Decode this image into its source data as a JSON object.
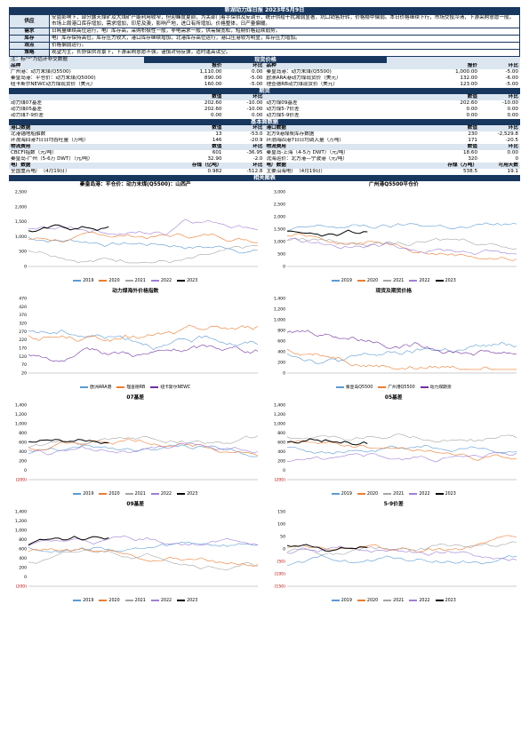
{
  "title": "新湖动力煤日报 2023年5月9日",
  "rows": {
    "supply": {
      "label": "供应",
      "text": "安监影响下，部分露天煤矿及大煤矿产能利用收窄，但迎峰度夏前，为关部门着手保供及反调节，统计供给干扰减弱显著，坑口销售好转，价格稳中偏弱。本日价格继续下行，市场交投冷清，下游采购意愿一般。市场上周港口库存增加，需求增加，印尼及澳，影响产地，进口有所增加。价格整体，日产量偏暖。"
    },
    "demand": {
      "label": "需求",
      "text": "日耗量继续高位运行，电厂库存高，采购积极性一般，非电需求一般，供需偏宽松，短期价格延续弱势。"
    },
    "futures": {
      "label": "库存",
      "text": "电厂库存保持高位，库存压力较大，港口库存继续增加，北港库存高位运行，港口压港较为明显，库存压力增加。"
    },
    "view": {
      "label": "观点",
      "text": "价格偏弱运行。"
    },
    "strategy": {
      "label": "策略",
      "text": "观望为主，长协保供背景下，下游采购意愿不强，谨慎对待反弹，适时逢高试空。"
    }
  },
  "note": "注：标\"*\"为估计非交数据",
  "sections": {
    "spot": "现货价格",
    "futures_prices": "期货",
    "fundamentals": "基本面数据",
    "charts": "相关图表"
  },
  "spot_header": [
    "品种",
    "报价",
    "环比",
    "品种",
    "报价",
    "环比"
  ],
  "spot_rows": [
    [
      "广州港：动力末煤(Q5500)",
      "1,110.00",
      "0.00",
      "秦皇岛港：动力末煤(Q5500)",
      "1,000.00",
      "-5.00"
    ],
    [
      "秦皇岛港：平仓价：动力末煤(Q5000)",
      "890.00",
      "-5.00",
      "欧洲ARA港动力煤现货价（美元）",
      "132.00",
      "-6.00"
    ],
    [
      "纽卡斯尔NEWC动力煤现货价（美元）",
      "160.00",
      "-5.00",
      "理查德RB动力煤现货价（美元）",
      "123.00",
      "-5.00"
    ]
  ],
  "futures_header": [
    "",
    "数值",
    "环比",
    "",
    "数值",
    "环比"
  ],
  "futures_rows": [
    [
      "动力煤07基差",
      "202.60",
      "-10.00",
      "动力煤09基差",
      "202.60",
      "-10.00"
    ],
    [
      "动力煤05基差",
      "202.60",
      "-10.00",
      "动力煤5-7价差",
      "0.00",
      "0.00"
    ],
    [
      "动力煤7-9价差",
      "0.00",
      "0.00",
      "动力煤5-9价差",
      "0.00",
      "0.00"
    ]
  ],
  "fund_header1": [
    "港口数据",
    "数值",
    "环比",
    "港口数据",
    "数值",
    "环比"
  ],
  "fund_rows1": [
    [
      "北港锚地船舶数",
      "13",
      "-53.0",
      "北方9港煤炭库存数据",
      "230",
      "-2,529.8"
    ],
    [
      "环渤海四港7日日均吞吐量（万吨）",
      "146",
      "-20.9",
      "环渤海四港7日日均调入量（万吨）",
      "171",
      "-20.5"
    ]
  ],
  "fund_header2": [
    "物流费用",
    "数值",
    "环比",
    "物流费用",
    "数值",
    "环比"
  ],
  "fund_rows2": [
    [
      "CBCFI指数（元/吨）",
      "601",
      "-36.95",
      "秦皇岛-上海（4-5万 DWT）（元/吨）",
      "18.60",
      "0.00"
    ],
    [
      "秦皇岛-广州（5-6万 DWT）（元/吨）",
      "32.90",
      "-2.0",
      "沈海运价：北方港—宁波港（元/吨）",
      "320",
      "0"
    ]
  ],
  "fund_header3": [
    "电厂数据",
    "存煤（亿吨）",
    "环比",
    "电厂数据",
    "存煤（万吨）",
    "可用天数"
  ],
  "fund_rows3": [
    [
      "全国重点电厂（4月19日）",
      "0.982",
      "-512.8",
      "主要沿海电厂（4月19日）",
      "538.5",
      "19.1"
    ]
  ],
  "charts": [
    {
      "title": "秦皇岛港：平仓价：动力末煤(Q5500)：山西产",
      "yticks": [
        "2,500",
        "2,000",
        "1,500",
        "1,000",
        "500",
        "0"
      ],
      "legend": [
        "2019",
        "2020",
        "2021",
        "2022",
        "2023"
      ]
    },
    {
      "title": "广州港Q5500平仓价",
      "yticks": [
        "3,000",
        "2,500",
        "2,000",
        "1,500",
        "1,000",
        "500",
        "0"
      ],
      "legend": [
        "2019",
        "2020",
        "2021",
        "2022",
        "2023"
      ]
    },
    {
      "title": "动力煤海外价格指数",
      "yticks": [
        "470",
        "420",
        "370",
        "320",
        "270",
        "220",
        "170",
        "120",
        "70",
        "20"
      ],
      "legend": [
        "欧洲ARA港",
        "理查德RB",
        "纽卡斯尔NEWC"
      ]
    },
    {
      "title": "现货及期货价格",
      "yticks": [
        "1,400",
        "1,200",
        "1,000",
        "800",
        "600",
        "400",
        "200",
        "0"
      ],
      "legend": [
        "秦皇岛Q5500",
        "广州港Q5500",
        "动力煤期货"
      ]
    },
    {
      "title": "07基差",
      "yticks": [
        "1,400",
        "1,200",
        "1,000",
        "800",
        "600",
        "400",
        "200",
        "0",
        "(200)"
      ],
      "legend": [
        "2019",
        "2020",
        "2021",
        "2022",
        "2023"
      ]
    },
    {
      "title": "05基差",
      "yticks": [
        "1,400",
        "1,200",
        "1,000",
        "800",
        "600",
        "400",
        "200",
        "0",
        "(200)"
      ],
      "legend": [
        "2019",
        "2020",
        "2021",
        "2022",
        "2023"
      ]
    },
    {
      "title": "09基差",
      "yticks": [
        "1,400",
        "1,200",
        "1,000",
        "800",
        "600",
        "400",
        "200",
        "0",
        "(200)"
      ],
      "legend": [
        "2019",
        "2020",
        "2021",
        "2022",
        "2023"
      ]
    },
    {
      "title": "5-9价差",
      "yticks": [
        "150",
        "100",
        "50",
        "0",
        "(50)",
        "(100)",
        "(150)"
      ],
      "legend": [
        "2019",
        "2020",
        "2021",
        "2022",
        "2023"
      ]
    }
  ],
  "colors": {
    "y2019": "#5b9bd5",
    "y2020": "#ed7d31",
    "y2021": "#a5a5a5",
    "y2022": "#9e7fd6",
    "y2023": "#000000",
    "s1": "#5b9bd5",
    "s2": "#ed7d31",
    "s3": "#7030a0"
  }
}
